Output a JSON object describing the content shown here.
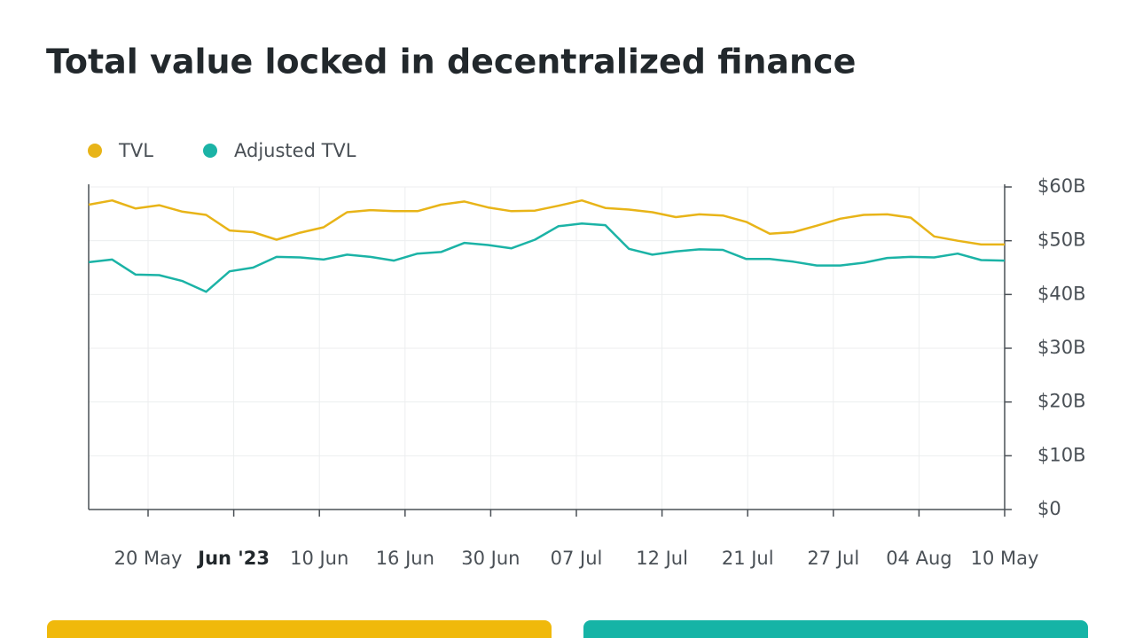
{
  "chart_data": {
    "type": "line",
    "title": "Total value locked in decentralized finance",
    "xticks": [
      "20 May",
      "Jun '23",
      "10 Jun",
      "16 Jun",
      "30 Jun",
      "07 Jul",
      "12 Jul",
      "21 Jul",
      "27 Jul",
      "04 Aug",
      "10 May"
    ],
    "series": [
      {
        "name": "TVL",
        "color": "#e8b418",
        "values": [
          56.7,
          57.5,
          56,
          56.6,
          55.4,
          54.8,
          51.9,
          51.6,
          50.2,
          51.5,
          52.5,
          55.3,
          55.7,
          55.5,
          55.5,
          56.7,
          57.3,
          56.2,
          55.5,
          55.6,
          56.5,
          57.5,
          56.1,
          55.8,
          55.3,
          54.4,
          54.9,
          54.7,
          53.5,
          51.3,
          51.6,
          52.8,
          54.1,
          54.8,
          54.9,
          54.3,
          50.8,
          50,
          49.3,
          49.3
        ]
      },
      {
        "name": "Adjusted TVL",
        "color": "#1bb3a6",
        "values": [
          46,
          46.5,
          43.7,
          43.6,
          42.5,
          40.5,
          44.3,
          45,
          47,
          46.9,
          46.5,
          47.4,
          47,
          46.3,
          47.6,
          47.9,
          49.6,
          49.2,
          48.6,
          50.2,
          52.7,
          53.2,
          52.9,
          48.5,
          47.4,
          48,
          48.4,
          48.3,
          46.6,
          46.6,
          46.1,
          45.4,
          45.4,
          45.9,
          46.8,
          47,
          46.9,
          47.6,
          46.4,
          46.3
        ]
      }
    ],
    "ylim": [
      0,
      60
    ],
    "yticks": [
      {
        "value": 0,
        "label": "$0"
      },
      {
        "value": 10,
        "label": "$10B"
      },
      {
        "value": 20,
        "label": "$20B"
      },
      {
        "value": 30,
        "label": "$30B"
      },
      {
        "value": 40,
        "label": "$40B"
      },
      {
        "value": 50,
        "label": "$50B"
      },
      {
        "value": 60,
        "label": "$60B"
      }
    ],
    "grid": true
  }
}
